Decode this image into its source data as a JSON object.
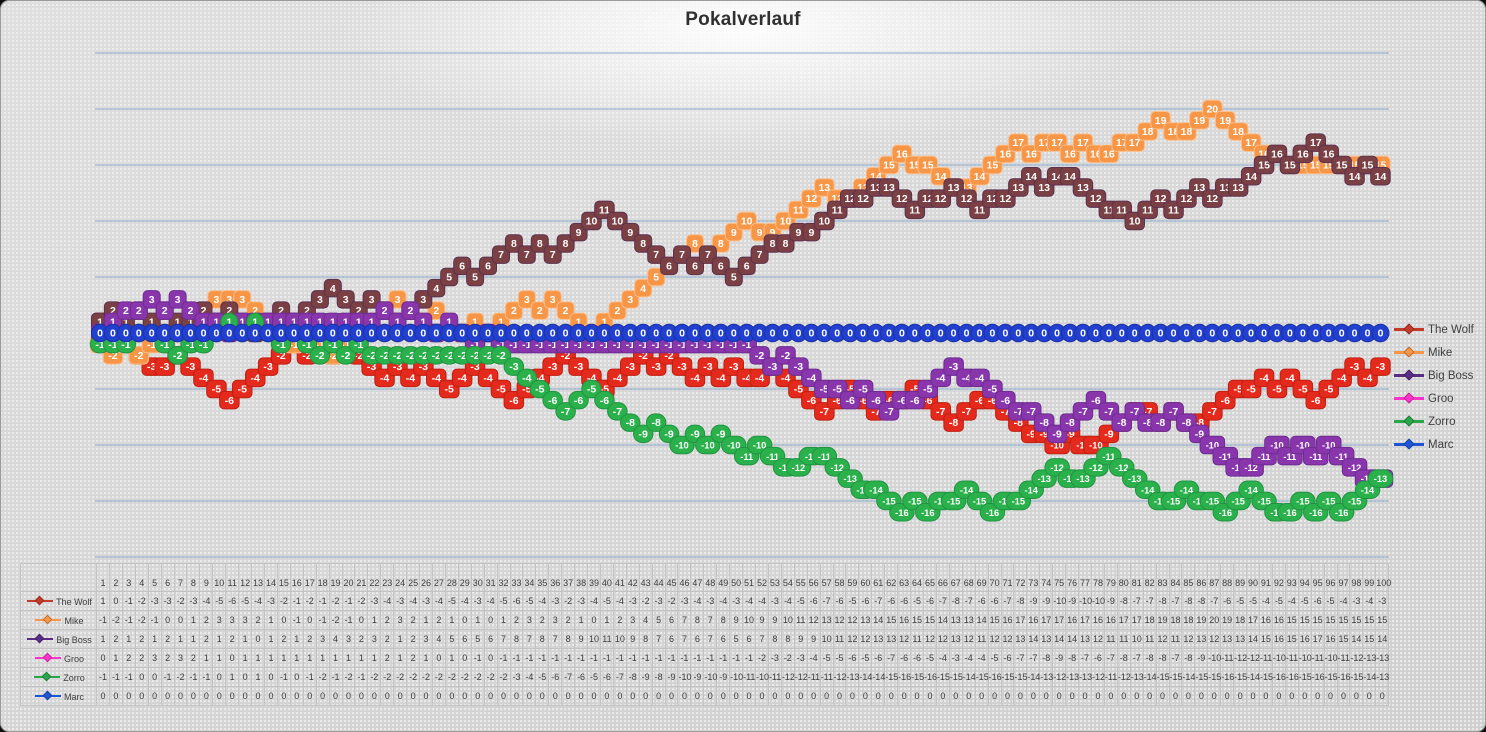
{
  "title": "Pokalverlauf",
  "legend": {
    "position": "right",
    "entries": [
      "The Wolf",
      "Mike",
      "Big Boss",
      "Groo",
      "Zorro",
      "Marc"
    ]
  },
  "chart_data": {
    "type": "line",
    "title": "Pokalverlauf",
    "xlabel": "",
    "ylabel": "",
    "ylim": [
      -20,
      25
    ],
    "grid": true,
    "grid_step": 5,
    "legend_position": "right",
    "data_table_shown": true,
    "x": [
      1,
      2,
      3,
      4,
      5,
      6,
      7,
      8,
      9,
      10,
      11,
      12,
      13,
      14,
      15,
      16,
      17,
      18,
      19,
      20,
      21,
      22,
      23,
      24,
      25,
      26,
      27,
      28,
      29,
      30,
      31,
      32,
      33,
      34,
      35,
      36,
      37,
      38,
      39,
      40,
      41,
      42,
      43,
      44,
      45,
      46,
      47,
      48,
      49,
      50,
      51,
      52,
      53,
      54,
      55,
      56,
      57,
      58,
      59,
      60,
      61,
      62,
      63,
      64,
      65,
      66,
      67,
      68,
      69,
      70,
      71,
      72,
      73,
      74,
      75,
      76,
      77,
      78,
      79,
      80,
      81,
      82,
      83,
      84,
      85,
      86,
      87,
      88,
      89,
      90,
      91,
      92,
      93,
      94,
      95,
      96,
      97,
      98,
      99,
      100
    ],
    "series": [
      {
        "name": "The Wolf",
        "shape": "square",
        "line_color": "#e02717",
        "label_fill": "#e42a1c",
        "label_stroke": "#bf1f12",
        "legend_color": "#c43a2b",
        "values": [
          1,
          0,
          -1,
          -2,
          -3,
          -3,
          -2,
          -3,
          -4,
          -5,
          -6,
          -5,
          -4,
          -3,
          -2,
          -1,
          -2,
          -1,
          -2,
          -1,
          -2,
          -3,
          -4,
          -3,
          -4,
          -3,
          -4,
          -5,
          -4,
          -3,
          -4,
          -5,
          -6,
          -5,
          -4,
          -3,
          -2,
          -3,
          -4,
          -5,
          -4,
          -3,
          -2,
          -3,
          -2,
          -3,
          -4,
          -3,
          -4,
          -3,
          -4,
          -4,
          -3,
          -4,
          -5,
          -6,
          -7,
          -6,
          -5,
          -6,
          -7,
          -6,
          -6,
          -5,
          -6,
          -7,
          -8,
          -7,
          -6,
          -6,
          -7,
          -8,
          -9,
          -9,
          -10,
          -9,
          -10,
          -10,
          -9,
          -8,
          -7,
          -7,
          -8,
          -7,
          -8,
          -8,
          -7,
          -6,
          -5,
          -5,
          -4,
          -5,
          -4,
          -5,
          -6,
          -5,
          -4,
          -3,
          -4,
          -3
        ]
      },
      {
        "name": "Mike",
        "shape": "square",
        "line_color": "#f79646",
        "label_fill": "#f79646",
        "label_stroke": "#fbbe8c",
        "legend_color": "#f79646",
        "values": [
          -1,
          -2,
          -1,
          -2,
          -1,
          0,
          0,
          1,
          2,
          3,
          3,
          3,
          2,
          1,
          0,
          -1,
          0,
          -1,
          -2,
          -1,
          0,
          1,
          2,
          3,
          2,
          1,
          2,
          1,
          0,
          1,
          0,
          1,
          2,
          3,
          2,
          3,
          2,
          1,
          0,
          1,
          2,
          3,
          4,
          5,
          6,
          7,
          8,
          7,
          8,
          9,
          10,
          9,
          9,
          10,
          11,
          12,
          13,
          12,
          12,
          13,
          14,
          15,
          16,
          15,
          15,
          14,
          13,
          13,
          14,
          15,
          16,
          17,
          16,
          17,
          17,
          16,
          17,
          16,
          16,
          17,
          17,
          18,
          19,
          18,
          18,
          19,
          20,
          19,
          18,
          17,
          16,
          16,
          15,
          15,
          15,
          15,
          15,
          15,
          15,
          15
        ]
      },
      {
        "name": "Big Boss",
        "shape": "square",
        "line_color": "#7b3bb0",
        "label_fill": "#7b4043",
        "label_stroke": "#5c3050",
        "legend_color": "#5b2c86",
        "values": [
          1,
          2,
          1,
          2,
          1,
          2,
          1,
          1,
          2,
          1,
          2,
          1,
          0,
          1,
          2,
          1,
          2,
          3,
          4,
          3,
          2,
          3,
          2,
          1,
          2,
          3,
          4,
          5,
          6,
          5,
          6,
          7,
          8,
          7,
          8,
          7,
          8,
          9,
          10,
          11,
          10,
          9,
          8,
          7,
          6,
          7,
          6,
          7,
          6,
          5,
          6,
          7,
          8,
          8,
          9,
          9,
          10,
          11,
          12,
          12,
          13,
          13,
          12,
          11,
          12,
          12,
          13,
          12,
          11,
          12,
          12,
          13,
          14,
          13,
          14,
          14,
          13,
          12,
          11,
          11,
          10,
          11,
          12,
          11,
          12,
          13,
          12,
          13,
          13,
          14,
          15,
          16,
          15,
          16,
          17,
          16,
          15,
          14,
          15,
          14
        ]
      },
      {
        "name": "Groo",
        "shape": "square",
        "line_color": "#ff2fc8",
        "label_fill": "#8936ac",
        "label_stroke": "#6d2b90",
        "legend_color": "#ff33cc",
        "values": [
          0,
          1,
          2,
          2,
          3,
          2,
          3,
          2,
          1,
          1,
          0,
          1,
          1,
          1,
          1,
          1,
          1,
          1,
          1,
          1,
          1,
          1,
          2,
          1,
          2,
          1,
          0,
          1,
          0,
          -1,
          0,
          -1,
          -1,
          -1,
          -1,
          -1,
          -1,
          -1,
          -1,
          -1,
          -1,
          -1,
          -1,
          -1,
          -1,
          -1,
          -1,
          -1,
          -1,
          -1,
          -1,
          -2,
          -3,
          -2,
          -3,
          -4,
          -5,
          -5,
          -6,
          -5,
          -6,
          -7,
          -6,
          -6,
          -5,
          -4,
          -3,
          -4,
          -4,
          -5,
          -6,
          -7,
          -7,
          -8,
          -9,
          -8,
          -7,
          -6,
          -7,
          -8,
          -7,
          -8,
          -8,
          -7,
          -8,
          -9,
          -10,
          -11,
          -12,
          -12,
          -11,
          -10,
          -11,
          -10,
          -11,
          -10,
          -11,
          -12,
          -13,
          -13
        ]
      },
      {
        "name": "Zorro",
        "shape": "circle",
        "line_color": "#2bb14b",
        "label_fill": "#2bb14b",
        "label_stroke": "#209342",
        "legend_color": "#28a74b",
        "values": [
          -1,
          -1,
          -1,
          0,
          0,
          -1,
          -2,
          -1,
          -1,
          0,
          1,
          0,
          1,
          0,
          -1,
          0,
          -1,
          -2,
          -1,
          -2,
          -1,
          -2,
          -2,
          -2,
          -2,
          -2,
          -2,
          -2,
          -2,
          -2,
          -2,
          -2,
          -3,
          -4,
          -5,
          -6,
          -7,
          -6,
          -5,
          -6,
          -7,
          -8,
          -9,
          -8,
          -9,
          -10,
          -9,
          -10,
          -9,
          -10,
          -11,
          -10,
          -11,
          -12,
          -12,
          -11,
          -11,
          -12,
          -13,
          -14,
          -14,
          -15,
          -16,
          -15,
          -16,
          -15,
          -15,
          -14,
          -15,
          -16,
          -15,
          -15,
          -14,
          -13,
          -12,
          -13,
          -13,
          -12,
          -11,
          -12,
          -13,
          -14,
          -15,
          -15,
          -14,
          -15,
          -15,
          -16,
          -15,
          -14,
          -15,
          -16,
          -16,
          -15,
          -16,
          -15,
          -16,
          -15,
          -14,
          -13
        ]
      },
      {
        "name": "Marc",
        "shape": "circle",
        "line_color": "#2240d0",
        "label_fill": "#2240d0",
        "label_stroke": "#1a31a5",
        "legend_color": "#1e56d6",
        "values": [
          0,
          0,
          0,
          0,
          0,
          0,
          0,
          0,
          0,
          0,
          0,
          0,
          0,
          0,
          0,
          0,
          0,
          0,
          0,
          0,
          0,
          0,
          0,
          0,
          0,
          0,
          0,
          0,
          0,
          0,
          0,
          0,
          0,
          0,
          0,
          0,
          0,
          0,
          0,
          0,
          0,
          0,
          0,
          0,
          0,
          0,
          0,
          0,
          0,
          0,
          0,
          0,
          0,
          0,
          0,
          0,
          0,
          0,
          0,
          0,
          0,
          0,
          0,
          0,
          0,
          0,
          0,
          0,
          0,
          0,
          0,
          0,
          0,
          0,
          0,
          0,
          0,
          0,
          0,
          0,
          0,
          0,
          0,
          0,
          0,
          0,
          0,
          0,
          0,
          0,
          0,
          0,
          0,
          0,
          0,
          0,
          0,
          0,
          0,
          0
        ]
      }
    ],
    "style": {
      "gridline_color": "#86a8cd",
      "table_border_color": "#c3c3c3",
      "text_color": "#3d3d3d"
    }
  }
}
